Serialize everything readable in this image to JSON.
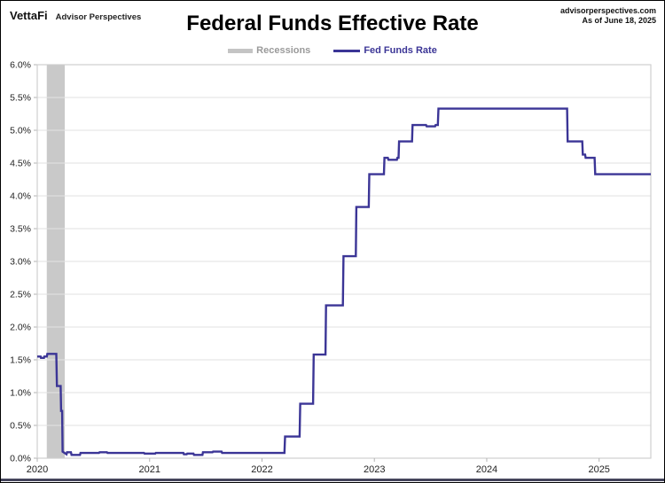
{
  "header": {
    "brand": "VettaFi",
    "brand_sub": "Advisor Perspectives",
    "title": "Federal Funds Effective Rate",
    "source_site": "advisorperspectives.com",
    "as_of": "As of June 18, 2025"
  },
  "colors": {
    "line": "#3b3596",
    "recession_band": "#c9c9c9",
    "grid": "#e2e2e2",
    "plot_border": "#cfcfcf",
    "tick": "#b3b3b3",
    "axis_text": "#222222",
    "legend_recessions_text": "#9a9a9a",
    "bottom_bar": "#45455c"
  },
  "chart_data": {
    "type": "line",
    "title": "Federal Funds Effective Rate",
    "xlabel": "",
    "ylabel": "",
    "grid": true,
    "legend_position": "top-center",
    "legend": [
      {
        "label": "Recessions",
        "swatch": "band",
        "color": "#c4c4c4"
      },
      {
        "label": "Fed Funds Rate",
        "swatch": "line",
        "color": "#3b3596"
      }
    ],
    "xlim": [
      2020,
      2025.46
    ],
    "ylim": [
      0,
      6
    ],
    "xticks": {
      "values": [
        2020,
        2021,
        2022,
        2023,
        2024,
        2025
      ],
      "labels": [
        "2020",
        "2021",
        "2022",
        "2023",
        "2024",
        "2025"
      ]
    },
    "yticks": {
      "values": [
        0,
        0.5,
        1,
        1.5,
        2,
        2.5,
        3,
        3.5,
        4,
        4.5,
        5,
        5.5,
        6
      ],
      "labels": [
        "0.0%",
        "0.5%",
        "1.0%",
        "1.5%",
        "2.0%",
        "2.5%",
        "3.0%",
        "3.5%",
        "4.0%",
        "4.5%",
        "5.0%",
        "5.5%",
        "6.0%"
      ]
    },
    "recessions": [
      {
        "start": 2020.085,
        "end": 2020.245
      }
    ],
    "series": [
      {
        "name": "Fed Funds Rate",
        "color": "#3b3596",
        "units": "percent",
        "points": [
          [
            2020.0,
            1.55
          ],
          [
            2020.03,
            1.55
          ],
          [
            2020.033,
            1.53
          ],
          [
            2020.06,
            1.53
          ],
          [
            2020.063,
            1.55
          ],
          [
            2020.085,
            1.55
          ],
          [
            2020.09,
            1.59
          ],
          [
            2020.17,
            1.59
          ],
          [
            2020.175,
            1.1
          ],
          [
            2020.208,
            1.1
          ],
          [
            2020.212,
            0.72
          ],
          [
            2020.222,
            0.72
          ],
          [
            2020.226,
            0.1
          ],
          [
            2020.26,
            0.06
          ],
          [
            2020.265,
            0.09
          ],
          [
            2020.3,
            0.09
          ],
          [
            2020.305,
            0.05
          ],
          [
            2020.38,
            0.05
          ],
          [
            2020.385,
            0.08
          ],
          [
            2020.55,
            0.08
          ],
          [
            2020.555,
            0.09
          ],
          [
            2020.62,
            0.09
          ],
          [
            2020.625,
            0.08
          ],
          [
            2020.95,
            0.08
          ],
          [
            2020.955,
            0.07
          ],
          [
            2021.05,
            0.07
          ],
          [
            2021.055,
            0.08
          ],
          [
            2021.3,
            0.08
          ],
          [
            2021.305,
            0.06
          ],
          [
            2021.33,
            0.06
          ],
          [
            2021.335,
            0.07
          ],
          [
            2021.39,
            0.07
          ],
          [
            2021.395,
            0.05
          ],
          [
            2021.47,
            0.05
          ],
          [
            2021.475,
            0.09
          ],
          [
            2021.56,
            0.09
          ],
          [
            2021.565,
            0.1
          ],
          [
            2021.64,
            0.1
          ],
          [
            2021.645,
            0.08
          ],
          [
            2022.2,
            0.08
          ],
          [
            2022.205,
            0.33
          ],
          [
            2022.335,
            0.33
          ],
          [
            2022.34,
            0.83
          ],
          [
            2022.455,
            0.83
          ],
          [
            2022.46,
            1.58
          ],
          [
            2022.565,
            1.58
          ],
          [
            2022.57,
            2.33
          ],
          [
            2022.72,
            2.33
          ],
          [
            2022.725,
            3.08
          ],
          [
            2022.835,
            3.08
          ],
          [
            2022.84,
            3.83
          ],
          [
            2022.95,
            3.83
          ],
          [
            2022.955,
            4.33
          ],
          [
            2023.085,
            4.33
          ],
          [
            2023.09,
            4.58
          ],
          [
            2023.12,
            4.58
          ],
          [
            2023.125,
            4.55
          ],
          [
            2023.2,
            4.55
          ],
          [
            2023.205,
            4.58
          ],
          [
            2023.215,
            4.58
          ],
          [
            2023.22,
            4.83
          ],
          [
            2023.335,
            4.83
          ],
          [
            2023.34,
            5.08
          ],
          [
            2023.46,
            5.08
          ],
          [
            2023.465,
            5.06
          ],
          [
            2023.54,
            5.06
          ],
          [
            2023.545,
            5.08
          ],
          [
            2023.565,
            5.08
          ],
          [
            2023.57,
            5.33
          ],
          [
            2024.715,
            5.33
          ],
          [
            2024.72,
            4.83
          ],
          [
            2024.85,
            4.83
          ],
          [
            2024.855,
            4.63
          ],
          [
            2024.875,
            4.63
          ],
          [
            2024.88,
            4.58
          ],
          [
            2024.96,
            4.58
          ],
          [
            2024.965,
            4.33
          ],
          [
            2025.46,
            4.33
          ]
        ]
      }
    ]
  }
}
